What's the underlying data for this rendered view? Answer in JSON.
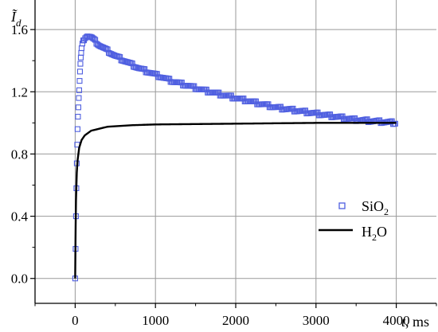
{
  "chart_data": {
    "type": "scatter",
    "xlabel": "t",
    "xunit": ", ms",
    "ylabel_main": "Ĩ",
    "ylabel_sub": "d",
    "xlim": [
      -500,
      4500
    ],
    "ylim": [
      -0.16,
      1.79
    ],
    "xticks": [
      0,
      1000,
      2000,
      3000,
      4000
    ],
    "xtick_labels": [
      "0",
      "1000",
      "2000",
      "3000",
      "4000"
    ],
    "yticks": [
      0.0,
      0.4,
      0.8,
      1.2,
      1.6
    ],
    "ytick_labels": [
      "0.0",
      "0.4",
      "0.8",
      "1.2",
      "1.6"
    ],
    "grid": true,
    "legend_position": "right",
    "series": [
      {
        "name": "SiO",
        "name_sub": "2",
        "style": "square-markers",
        "color": "#4f5fe0",
        "points": [
          [
            0,
            0.0
          ],
          [
            5,
            0.19
          ],
          [
            10,
            0.4
          ],
          [
            15,
            0.58
          ],
          [
            20,
            0.74
          ],
          [
            25,
            0.86
          ],
          [
            30,
            0.96
          ],
          [
            35,
            1.04
          ],
          [
            40,
            1.1
          ],
          [
            45,
            1.16
          ],
          [
            50,
            1.21
          ],
          [
            55,
            1.27
          ],
          [
            60,
            1.33
          ],
          [
            65,
            1.38
          ],
          [
            70,
            1.42
          ],
          [
            75,
            1.45
          ],
          [
            80,
            1.48
          ],
          [
            90,
            1.51
          ],
          [
            100,
            1.53
          ],
          [
            120,
            1.55
          ],
          [
            150,
            1.56
          ],
          [
            200,
            1.55
          ],
          [
            300,
            1.5
          ],
          [
            500,
            1.43
          ],
          [
            800,
            1.35
          ],
          [
            1200,
            1.27
          ],
          [
            1600,
            1.21
          ],
          [
            2000,
            1.16
          ],
          [
            2500,
            1.1
          ],
          [
            3000,
            1.06
          ],
          [
            3500,
            1.02
          ],
          [
            4000,
            1.0
          ]
        ]
      },
      {
        "name": "H",
        "name_sub": "2",
        "name_tail": "O",
        "style": "line",
        "color": "#000000",
        "points": [
          [
            0,
            0.0
          ],
          [
            5,
            0.3
          ],
          [
            10,
            0.5
          ],
          [
            20,
            0.68
          ],
          [
            30,
            0.76
          ],
          [
            50,
            0.84
          ],
          [
            80,
            0.89
          ],
          [
            120,
            0.92
          ],
          [
            200,
            0.95
          ],
          [
            400,
            0.975
          ],
          [
            700,
            0.985
          ],
          [
            1000,
            0.99
          ],
          [
            2000,
            0.995
          ],
          [
            3000,
            1.0
          ],
          [
            4000,
            1.0
          ]
        ]
      }
    ]
  }
}
